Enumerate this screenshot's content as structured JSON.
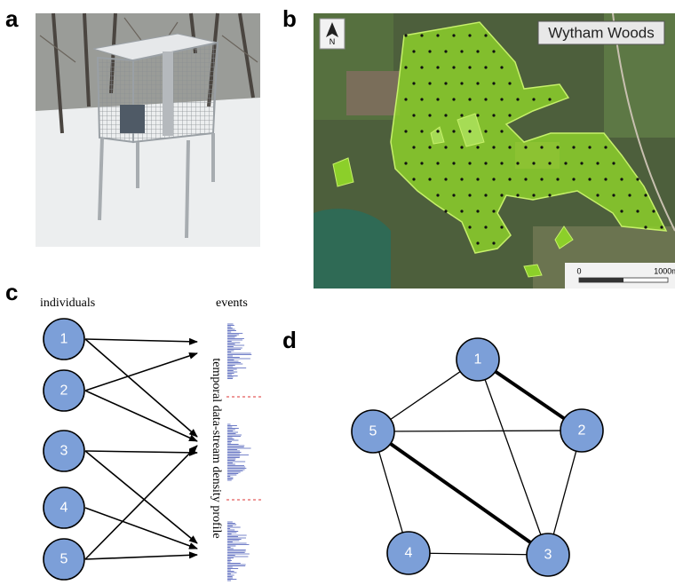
{
  "panels": {
    "a": {
      "label": "a"
    },
    "b": {
      "label": "b",
      "map_title": "Wytham Woods",
      "north": "N",
      "scale_start": "0",
      "scale_end": "1000m"
    },
    "c": {
      "label": "c",
      "left_heading": "individuals",
      "right_heading": "events",
      "axis_label": "temporal data-stream density profile",
      "nodes": [
        "1",
        "2",
        "3",
        "4",
        "5"
      ]
    },
    "d": {
      "label": "d",
      "nodes": [
        "1",
        "2",
        "3",
        "4",
        "5"
      ]
    }
  }
}
